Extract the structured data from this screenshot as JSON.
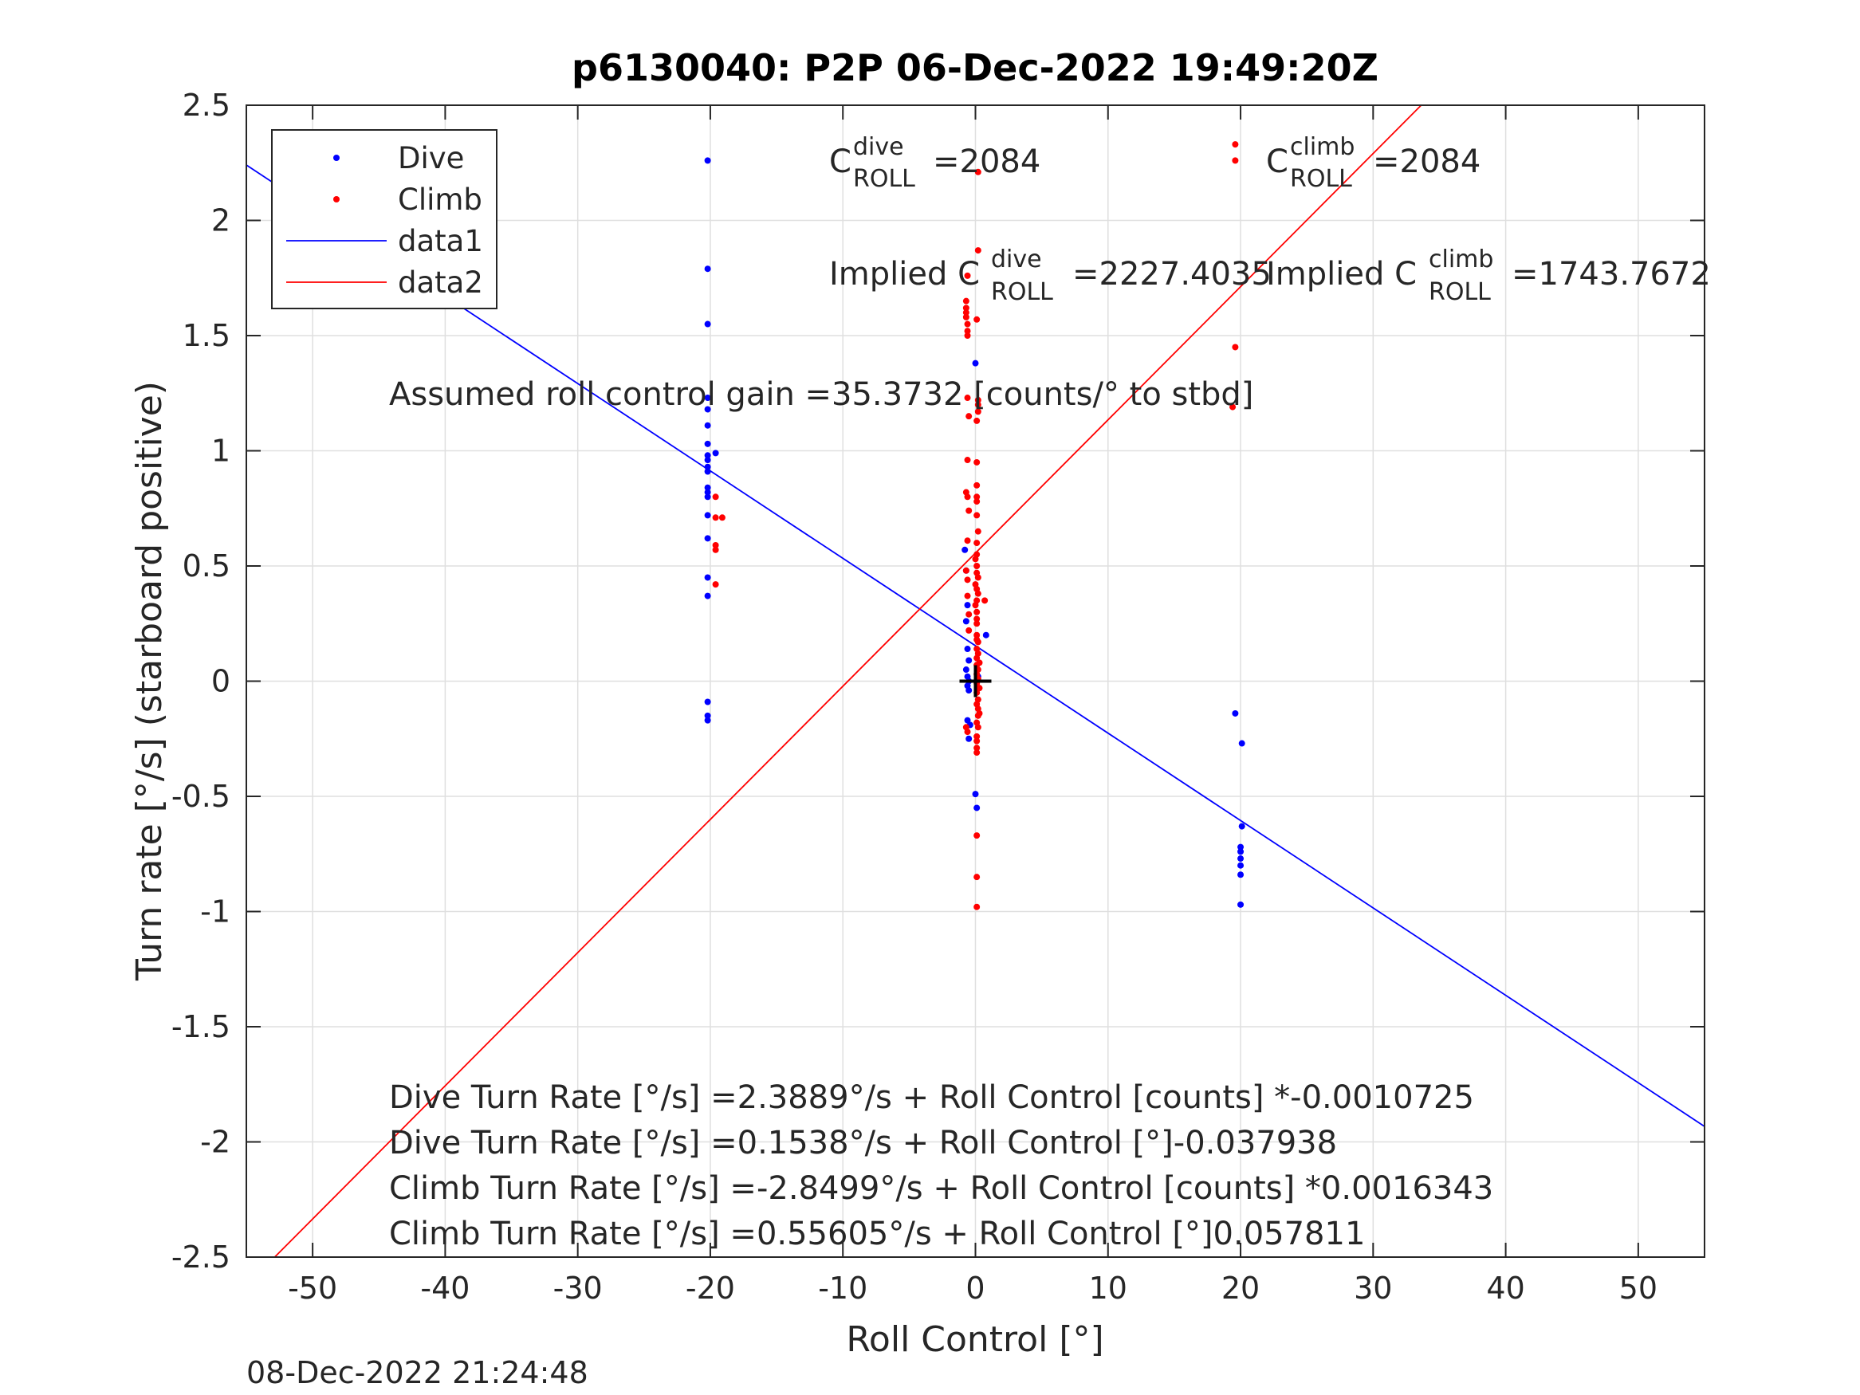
{
  "chart_data": {
    "type": "scatter",
    "title": "p6130040: P2P 06-Dec-2022 19:49:20Z",
    "xlabel": "Roll Control [°]",
    "ylabel": "Turn rate [°/s] (starboard positive)",
    "xlim": [
      -55,
      55
    ],
    "ylim": [
      -2.5,
      2.5
    ],
    "xticks": [
      -50,
      -40,
      -30,
      -20,
      -10,
      0,
      10,
      20,
      30,
      40,
      50
    ],
    "yticks": [
      -2.5,
      -2,
      -1.5,
      -1,
      -0.5,
      0,
      0.5,
      1,
      1.5,
      2,
      2.5
    ],
    "xtick_labels": [
      "-50",
      "-40",
      "-30",
      "-20",
      "-10",
      "0",
      "10",
      "20",
      "30",
      "40",
      "50"
    ],
    "ytick_labels": [
      "-2.5",
      "-2",
      "-1.5",
      "-1",
      "-0.5",
      "0",
      "0.5",
      "1",
      "1.5",
      "2",
      "2.5"
    ],
    "grid": true,
    "legend_position": "top-left",
    "legend": [
      {
        "label": "Dive",
        "kind": "marker",
        "color": "#0000ff"
      },
      {
        "label": "Climb",
        "kind": "marker",
        "color": "#ff0000"
      },
      {
        "label": "data1",
        "kind": "line",
        "color": "#0000ff"
      },
      {
        "label": "data2",
        "kind": "line",
        "color": "#ff0000"
      }
    ],
    "series": [
      {
        "name": "Dive",
        "color": "#0000ff",
        "points": [
          [
            -20.2,
            2.26
          ],
          [
            -20.2,
            1.79
          ],
          [
            -20.2,
            1.55
          ],
          [
            -20.2,
            1.23
          ],
          [
            -20.2,
            1.18
          ],
          [
            -20.2,
            1.11
          ],
          [
            -20.2,
            1.03
          ],
          [
            -20.2,
            0.98
          ],
          [
            -20.2,
            0.96
          ],
          [
            -20.2,
            0.93
          ],
          [
            -20.2,
            0.91
          ],
          [
            -20.2,
            0.84
          ],
          [
            -20.2,
            0.82
          ],
          [
            -20.2,
            0.8
          ],
          [
            -20.2,
            0.72
          ],
          [
            -20.2,
            0.62
          ],
          [
            -20.2,
            0.45
          ],
          [
            -20.2,
            0.37
          ],
          [
            -20.2,
            -0.09
          ],
          [
            -20.2,
            -0.15
          ],
          [
            -20.2,
            -0.17
          ],
          [
            -19.6,
            0.99
          ],
          [
            -0.8,
            0.57
          ],
          [
            -0.7,
            0.48
          ],
          [
            -0.6,
            0.33
          ],
          [
            -0.7,
            0.26
          ],
          [
            -0.6,
            0.14
          ],
          [
            -0.5,
            0.09
          ],
          [
            -0.7,
            0.05
          ],
          [
            -0.6,
            0.02
          ],
          [
            -0.5,
            0.0
          ],
          [
            -0.6,
            -0.02
          ],
          [
            -0.5,
            -0.04
          ],
          [
            -0.6,
            -0.17
          ],
          [
            -0.4,
            -0.19
          ],
          [
            -0.5,
            -0.25
          ],
          [
            0.0,
            1.38
          ],
          [
            0.0,
            -0.49
          ],
          [
            0.1,
            -0.55
          ],
          [
            0.2,
            0.02
          ],
          [
            0.8,
            0.2
          ],
          [
            19.6,
            -0.14
          ],
          [
            20.1,
            -0.27
          ],
          [
            20.1,
            -0.63
          ],
          [
            20.0,
            -0.72
          ],
          [
            20.0,
            -0.74
          ],
          [
            20.0,
            -0.77
          ],
          [
            20.0,
            -0.8
          ],
          [
            20.0,
            -0.84
          ],
          [
            20.0,
            -0.97
          ]
        ]
      },
      {
        "name": "Climb",
        "color": "#ff0000",
        "points": [
          [
            19.6,
            2.33
          ],
          [
            19.6,
            2.26
          ],
          [
            19.6,
            1.45
          ],
          [
            19.4,
            1.19
          ],
          [
            -19.6,
            0.8
          ],
          [
            -19.6,
            0.71
          ],
          [
            -19.6,
            0.59
          ],
          [
            -19.6,
            0.57
          ],
          [
            -19.6,
            0.42
          ],
          [
            -19.1,
            0.71
          ],
          [
            0.2,
            2.21
          ],
          [
            0.2,
            1.87
          ],
          [
            0.1,
            1.57
          ],
          [
            -0.6,
            1.76
          ],
          [
            -0.7,
            1.65
          ],
          [
            -0.7,
            1.62
          ],
          [
            -0.7,
            1.6
          ],
          [
            -0.7,
            1.58
          ],
          [
            -0.6,
            1.55
          ],
          [
            -0.6,
            1.52
          ],
          [
            -0.6,
            1.5
          ],
          [
            -0.6,
            1.23
          ],
          [
            0.2,
            1.22
          ],
          [
            0.2,
            1.2
          ],
          [
            0.2,
            1.17
          ],
          [
            -0.5,
            1.15
          ],
          [
            0.1,
            1.13
          ],
          [
            -0.6,
            0.96
          ],
          [
            0.1,
            0.95
          ],
          [
            0.1,
            0.85
          ],
          [
            -0.7,
            0.82
          ],
          [
            -0.6,
            0.8
          ],
          [
            0.1,
            0.8
          ],
          [
            0.1,
            0.78
          ],
          [
            -0.5,
            0.74
          ],
          [
            0.1,
            0.72
          ],
          [
            0.2,
            0.65
          ],
          [
            -0.6,
            0.61
          ],
          [
            0.1,
            0.6
          ],
          [
            0.1,
            0.55
          ],
          [
            0.0,
            0.53
          ],
          [
            0.1,
            0.5
          ],
          [
            -0.7,
            0.48
          ],
          [
            0.1,
            0.47
          ],
          [
            0.2,
            0.45
          ],
          [
            -0.6,
            0.44
          ],
          [
            0.0,
            0.42
          ],
          [
            0.1,
            0.4
          ],
          [
            0.2,
            0.38
          ],
          [
            -0.6,
            0.37
          ],
          [
            0.1,
            0.35
          ],
          [
            0.7,
            0.35
          ],
          [
            0.0,
            0.33
          ],
          [
            0.1,
            0.3
          ],
          [
            -0.5,
            0.29
          ],
          [
            0.1,
            0.27
          ],
          [
            0.1,
            0.25
          ],
          [
            -0.5,
            0.22
          ],
          [
            0.1,
            0.2
          ],
          [
            0.1,
            0.18
          ],
          [
            0.2,
            0.17
          ],
          [
            0.1,
            0.14
          ],
          [
            0.2,
            0.12
          ],
          [
            0.1,
            0.1
          ],
          [
            0.3,
            0.08
          ],
          [
            0.1,
            0.07
          ],
          [
            0.2,
            0.05
          ],
          [
            0.1,
            0.03
          ],
          [
            0.2,
            0.01
          ],
          [
            0.1,
            -0.01
          ],
          [
            0.3,
            -0.03
          ],
          [
            0.1,
            -0.05
          ],
          [
            0.2,
            -0.08
          ],
          [
            0.1,
            -0.1
          ],
          [
            0.2,
            -0.12
          ],
          [
            0.3,
            -0.14
          ],
          [
            0.2,
            -0.15
          ],
          [
            0.1,
            -0.18
          ],
          [
            0.2,
            -0.2
          ],
          [
            -0.7,
            -0.2
          ],
          [
            -0.6,
            -0.22
          ],
          [
            0.1,
            -0.24
          ],
          [
            0.1,
            -0.26
          ],
          [
            0.1,
            -0.29
          ],
          [
            0.1,
            -0.31
          ],
          [
            0.1,
            -0.67
          ],
          [
            0.1,
            -0.85
          ],
          [
            0.1,
            -0.98
          ]
        ]
      }
    ],
    "fit_lines": [
      {
        "name": "data1",
        "color": "#0000ff",
        "slope": -0.037938,
        "intercept": 0.1538
      },
      {
        "name": "data2",
        "color": "#ff0000",
        "slope": 0.057811,
        "intercept": 0.55605
      }
    ],
    "origin_marker": [
      0,
      0
    ],
    "annotations": {
      "c_dive": {
        "prefix": "C",
        "sup": "dive",
        "sub": "ROLL",
        "value": "=2084"
      },
      "c_climb": {
        "prefix": "C",
        "sup": "climb",
        "sub": "ROLL",
        "value": "=2084"
      },
      "implied_dive": {
        "prefix": "Implied C",
        "sup": "dive",
        "sub": "ROLL",
        "value": "=2227.4035"
      },
      "implied_climb": {
        "prefix": "Implied C",
        "sup": "climb",
        "sub": "ROLL",
        "value": "=1743.7672"
      },
      "gain": "Assumed roll control gain =35.3732 [counts/° to stbd]",
      "fit_lines_text": [
        "Dive Turn Rate [°/s] =2.3889°/s + Roll Control [counts] *-0.0010725",
        "Dive Turn Rate [°/s] =0.1538°/s + Roll Control [°]-0.037938",
        "Climb Turn Rate [°/s] =-2.8499°/s + Roll Control [counts] *0.0016343",
        "Climb Turn Rate [°/s] =0.55605°/s + Roll Control [°]0.057811"
      ]
    },
    "timestamp": "08-Dec-2022 21:24:48"
  }
}
